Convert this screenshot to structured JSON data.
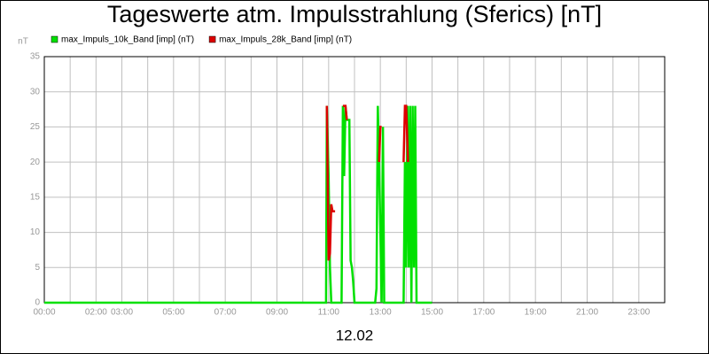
{
  "chart_data": {
    "type": "line",
    "title": "Tageswerte atm. Impulsstrahlung (Sferics) [nT]",
    "y_label": "nT",
    "x_label": "12.02",
    "xlim": [
      0,
      24
    ],
    "ylim": [
      0,
      35
    ],
    "yticks": [
      0,
      5,
      10,
      15,
      20,
      25,
      30,
      35
    ],
    "xticks": [
      {
        "value": 0,
        "label": "00:00"
      },
      {
        "value": 1,
        "label": null
      },
      {
        "value": 2,
        "label": "02:00"
      },
      {
        "value": 3,
        "label": "03:00"
      },
      {
        "value": 4,
        "label": null
      },
      {
        "value": 5,
        "label": "05:00"
      },
      {
        "value": 6,
        "label": null
      },
      {
        "value": 7,
        "label": "07:00"
      },
      {
        "value": 8,
        "label": null
      },
      {
        "value": 9,
        "label": "09:00"
      },
      {
        "value": 10,
        "label": null
      },
      {
        "value": 11,
        "label": "11:00"
      },
      {
        "value": 12,
        "label": null
      },
      {
        "value": 13,
        "label": "13:00"
      },
      {
        "value": 14,
        "label": null
      },
      {
        "value": 15,
        "label": "15:00"
      },
      {
        "value": 16,
        "label": null
      },
      {
        "value": 17,
        "label": "17:00"
      },
      {
        "value": 18,
        "label": null
      },
      {
        "value": 19,
        "label": "19:00"
      },
      {
        "value": 20,
        "label": null
      },
      {
        "value": 21,
        "label": "21:00"
      },
      {
        "value": 22,
        "label": null
      },
      {
        "value": 23,
        "label": "23:00"
      }
    ],
    "grid": true,
    "series": [
      {
        "name": "max_Impuls_10k_Band [imp] (nT)",
        "color": "#00e000",
        "x": [
          0,
          10.9,
          10.93,
          11.0,
          11.05,
          11.1,
          11.5,
          11.55,
          11.6,
          11.65,
          11.7,
          11.8,
          11.85,
          11.9,
          11.95,
          12.0,
          12.8,
          12.85,
          12.9,
          12.95,
          13.0,
          13.05,
          13.1,
          13.15,
          13.9,
          13.95,
          14.0,
          14.05,
          14.1,
          14.15,
          14.2,
          14.25,
          14.3,
          14.35,
          14.4,
          15.0
        ],
        "values": [
          0,
          0,
          28,
          18,
          5,
          0,
          0,
          28,
          18,
          28,
          26,
          26,
          6,
          5,
          3,
          0,
          0,
          2,
          28,
          20,
          10,
          0,
          25,
          0,
          0,
          20,
          5,
          28,
          5,
          28,
          0,
          28,
          5,
          28,
          0,
          0
        ]
      },
      {
        "name": "max_Impuls_28k_Band [imp] (nT)",
        "color": "#dd0000",
        "x": [
          10.93,
          11.0,
          11.05,
          11.1,
          11.15,
          11.25,
          11.3,
          11.55,
          11.65,
          11.7,
          11.75,
          12.95,
          13.0,
          13.05,
          13.1,
          13.9,
          13.95,
          14.0,
          14.07
        ],
        "values": [
          28,
          6,
          7,
          14,
          13,
          13,
          null,
          28,
          28,
          26,
          null,
          20,
          25,
          25,
          null,
          20,
          28,
          28,
          20
        ]
      }
    ]
  }
}
